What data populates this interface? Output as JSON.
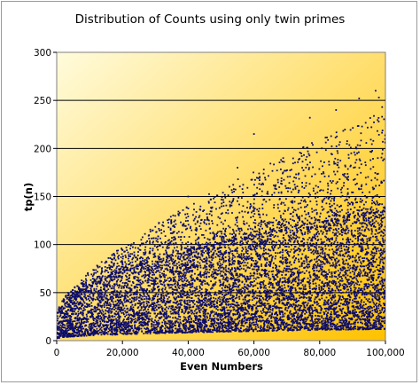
{
  "chart_data": {
    "type": "scatter",
    "title": "Distribution of Counts using only twin primes",
    "xlabel": "Even Numbers",
    "ylabel": "tp(n)",
    "xlim": [
      0,
      100000
    ],
    "ylim": [
      0,
      300
    ],
    "x_ticks": [
      0,
      20000,
      40000,
      60000,
      80000,
      100000
    ],
    "x_tick_labels": [
      "0",
      "20,000",
      "40,000",
      "60,000",
      "80,000",
      "100,000"
    ],
    "y_ticks": [
      0,
      50,
      100,
      150,
      200,
      250,
      300
    ],
    "y_tick_labels": [
      "0",
      "50",
      "100",
      "150",
      "200",
      "250",
      "300"
    ],
    "grid": "horizontal",
    "legend": "none",
    "marker_color": "#0d0d6b",
    "plot_background": [
      "#fffbdc",
      "#ffc200"
    ],
    "series": [
      {
        "description_points": [
          [
            20000,
            80
          ],
          [
            40000,
            150
          ],
          [
            55000,
            180
          ],
          [
            60000,
            215
          ],
          [
            77000,
            232
          ],
          [
            85000,
            240
          ],
          [
            92000,
            252
          ],
          [
            97000,
            260
          ],
          [
            98000,
            253
          ],
          [
            99000,
            243
          ]
        ],
        "dense_band": [
          [
            10000,
            5,
            40
          ],
          [
            20000,
            10,
            60
          ],
          [
            40000,
            15,
            90
          ],
          [
            60000,
            18,
            105
          ],
          [
            80000,
            20,
            120
          ],
          [
            100000,
            22,
            135
          ]
        ]
      }
    ]
  }
}
